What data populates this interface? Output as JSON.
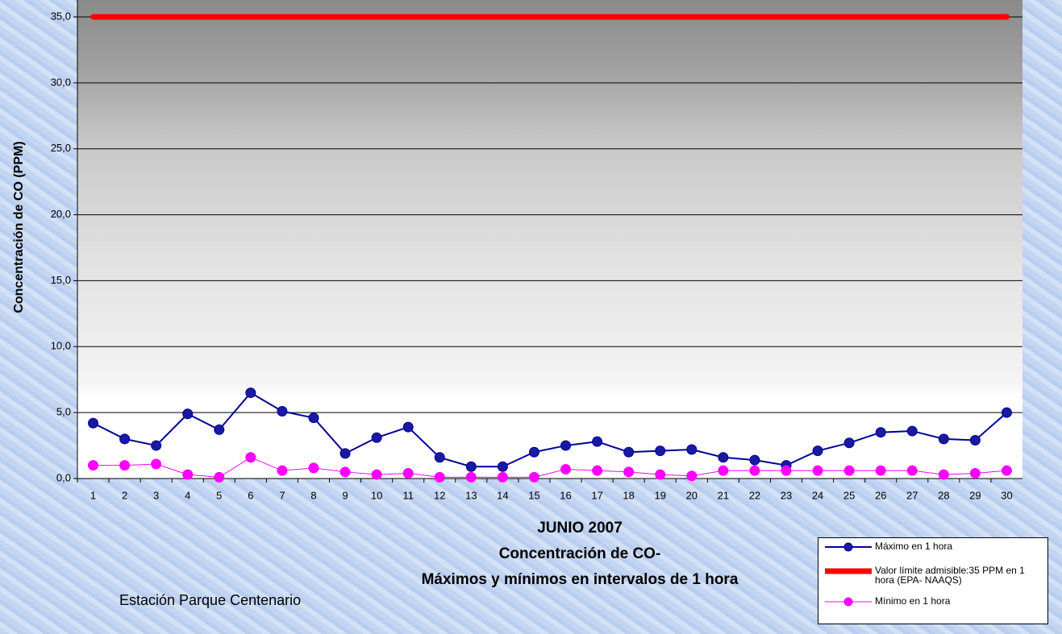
{
  "chart_data": {
    "type": "line",
    "title": "Concentración de CO-",
    "subtitle": "Máximos y mínimos en intervalos de 1 hora",
    "x_label": "JUNIO 2007",
    "y_label": "Concentración de CO (PPM)",
    "annotation": "Estación Parque Centenario",
    "categories": [
      "1",
      "2",
      "3",
      "4",
      "5",
      "6",
      "7",
      "8",
      "9",
      "10",
      "11",
      "12",
      "13",
      "14",
      "15",
      "16",
      "17",
      "18",
      "19",
      "20",
      "21",
      "22",
      "23",
      "24",
      "25",
      "26",
      "27",
      "28",
      "29",
      "30"
    ],
    "series": [
      {
        "name": "Máximo en 1 hora",
        "color": "#000099",
        "marker": "#1a1aa0",
        "line_width": 2,
        "values": [
          4.2,
          3.0,
          2.5,
          4.9,
          3.7,
          6.5,
          5.1,
          4.6,
          1.9,
          3.1,
          3.9,
          1.6,
          0.9,
          0.9,
          2.0,
          2.5,
          2.8,
          2.0,
          2.1,
          2.2,
          1.6,
          1.4,
          1.0,
          2.1,
          2.7,
          3.5,
          3.6,
          3.0,
          2.9,
          5.0
        ]
      },
      {
        "name": "Valor límite admisible:35 PPM en 1 hora (EPA- NAAQS)",
        "color": "#ff0000",
        "marker": null,
        "line_width": 7,
        "values": [
          35,
          35,
          35,
          35,
          35,
          35,
          35,
          35,
          35,
          35,
          35,
          35,
          35,
          35,
          35,
          35,
          35,
          35,
          35,
          35,
          35,
          35,
          35,
          35,
          35,
          35,
          35,
          35,
          35,
          35
        ]
      },
      {
        "name": "Mínimo en 1 hora",
        "color": "#ff00ff",
        "marker": "#ff00ff",
        "line_width": 1,
        "values": [
          1.0,
          1.0,
          1.1,
          0.3,
          0.1,
          1.6,
          0.6,
          0.8,
          0.5,
          0.3,
          0.4,
          0.1,
          0.1,
          0.1,
          0.1,
          0.7,
          0.6,
          0.5,
          0.3,
          0.2,
          0.6,
          0.6,
          0.6,
          0.6,
          0.6,
          0.6,
          0.6,
          0.3,
          0.4,
          0.6
        ]
      }
    ],
    "ylim": [
      0,
      35
    ],
    "yticks": [
      {
        "value": 0,
        "label": "0,0"
      },
      {
        "value": 5,
        "label": "5,0"
      },
      {
        "value": 10,
        "label": "10,0"
      },
      {
        "value": 15,
        "label": "15,0"
      },
      {
        "value": 20,
        "label": "20,0"
      },
      {
        "value": 25,
        "label": "25,0"
      },
      {
        "value": 30,
        "label": "30,0"
      },
      {
        "value": 35,
        "label": "35,0"
      }
    ],
    "grid": true
  }
}
